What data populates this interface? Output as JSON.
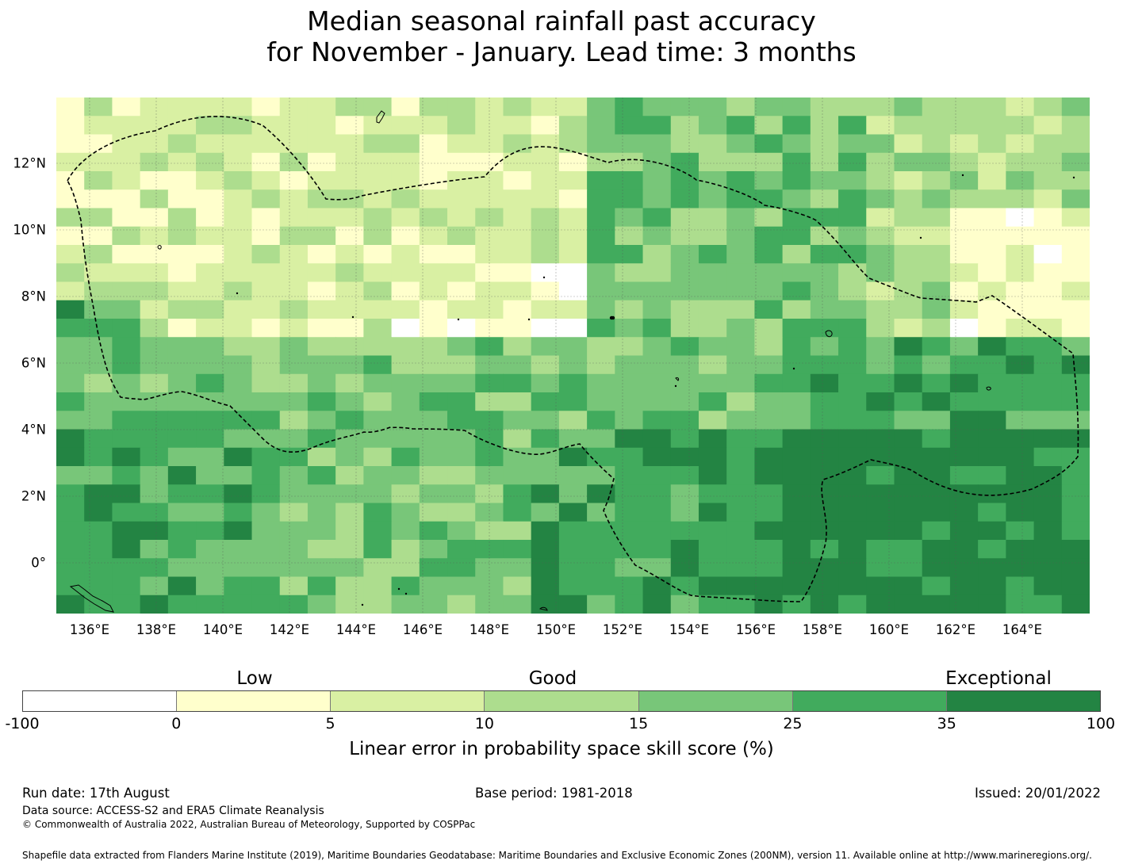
{
  "title_line1": "Median seasonal rainfall past accuracy",
  "title_line2": "for November - January. Lead time: 3 months",
  "map": {
    "lat_labels": [
      "12°N",
      "10°N",
      "8°N",
      "6°N",
      "4°N",
      "2°N",
      "0°"
    ],
    "lon_labels": [
      "136°E",
      "138°E",
      "140°E",
      "142°E",
      "144°E",
      "146°E",
      "148°E",
      "150°E",
      "152°E",
      "154°E",
      "156°E",
      "158°E",
      "160°E",
      "162°E",
      "164°E"
    ],
    "colors": [
      "#ffffff",
      "#ffffcc",
      "#d9f0a3",
      "#addd8e",
      "#78c679",
      "#41ab5d",
      "#238443"
    ]
  },
  "legend": {
    "categories": [
      "Low",
      "Good",
      "Exceptional"
    ],
    "ticks": [
      "-100",
      "0",
      "5",
      "10",
      "15",
      "25",
      "35",
      "100"
    ],
    "title": "Linear error in probability space skill score (%)"
  },
  "footer": {
    "run_date": "Run date: 17th August",
    "base_period": "Base period: 1981-2018",
    "issued": "Issued: 20/01/2022",
    "data_source": "Data source: ACCESS-S2 and ERA5 Climate Reanalysis",
    "copyright": "© Commonwealth of Australia 2022, Australian Bureau of Meteorology, Supported by COSPPac",
    "shapefile": "Shapefile data extracted from Flanders Marine Institute (2019), Maritime Boundaries Geodatabase: Maritime Boundaries and Exclusive Economic Zones (200NM), version 11. Available online at http://www.marineregions.org/."
  }
}
